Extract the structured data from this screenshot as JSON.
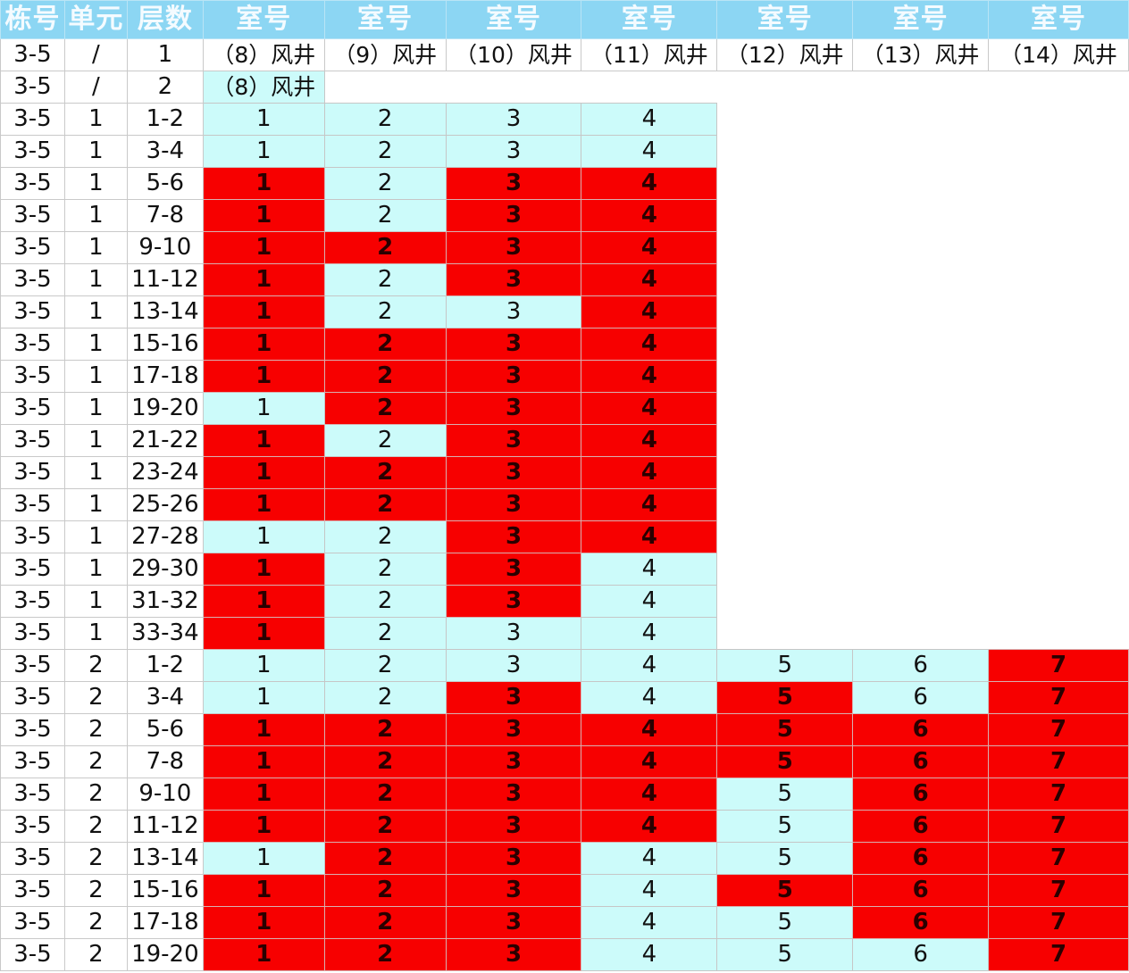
{
  "headers": [
    "栋号",
    "单元",
    "层数",
    "室号",
    "室号",
    "室号",
    "室号",
    "室号",
    "室号",
    "室号"
  ],
  "colors": {
    "header": "#8cd6f3",
    "cyan": "#ccfbfa",
    "red": "#f70000",
    "white": "#ffffff"
  },
  "rows": [
    {
      "cells": [
        {
          "v": "3-5",
          "s": "w"
        },
        {
          "v": "/",
          "s": "w"
        },
        {
          "v": "1",
          "s": "w"
        },
        {
          "v": "（8）风井",
          "s": "w",
          "k": "shaft"
        },
        {
          "v": "（9）风井",
          "s": "w",
          "k": "shaft"
        },
        {
          "v": "（10）风井",
          "s": "w",
          "k": "shaft"
        },
        {
          "v": "（11）风井",
          "s": "w",
          "k": "shaft"
        },
        {
          "v": "（12）风井",
          "s": "w",
          "k": "shaft"
        },
        {
          "v": "（13）风井",
          "s": "w",
          "k": "shaft"
        },
        {
          "v": "（14）风井",
          "s": "w",
          "k": "shaft"
        }
      ]
    },
    {
      "cells": [
        {
          "v": "3-5",
          "s": "w"
        },
        {
          "v": "/",
          "s": "w"
        },
        {
          "v": "2",
          "s": "w"
        },
        {
          "v": "（8）风井",
          "s": "c",
          "k": "shaft"
        },
        {
          "v": "",
          "s": "e"
        },
        {
          "v": "",
          "s": "e"
        },
        {
          "v": "",
          "s": "e"
        },
        {
          "v": "",
          "s": "e"
        },
        {
          "v": "",
          "s": "e"
        },
        {
          "v": "",
          "s": "e"
        }
      ]
    },
    {
      "cells": [
        {
          "v": "3-5",
          "s": "w"
        },
        {
          "v": "1",
          "s": "w"
        },
        {
          "v": "1-2",
          "s": "w"
        },
        {
          "v": "1",
          "s": "c"
        },
        {
          "v": "2",
          "s": "c"
        },
        {
          "v": "3",
          "s": "c"
        },
        {
          "v": "4",
          "s": "c"
        },
        {
          "v": "",
          "s": "e"
        },
        {
          "v": "",
          "s": "e"
        },
        {
          "v": "",
          "s": "e"
        }
      ]
    },
    {
      "cells": [
        {
          "v": "3-5",
          "s": "w"
        },
        {
          "v": "1",
          "s": "w"
        },
        {
          "v": "3-4",
          "s": "w"
        },
        {
          "v": "1",
          "s": "c"
        },
        {
          "v": "2",
          "s": "c"
        },
        {
          "v": "3",
          "s": "c"
        },
        {
          "v": "4",
          "s": "c"
        },
        {
          "v": "",
          "s": "e"
        },
        {
          "v": "",
          "s": "e"
        },
        {
          "v": "",
          "s": "e"
        }
      ]
    },
    {
      "cells": [
        {
          "v": "3-5",
          "s": "w"
        },
        {
          "v": "1",
          "s": "w"
        },
        {
          "v": "5-6",
          "s": "w"
        },
        {
          "v": "1",
          "s": "r"
        },
        {
          "v": "2",
          "s": "c"
        },
        {
          "v": "3",
          "s": "r"
        },
        {
          "v": "4",
          "s": "r"
        },
        {
          "v": "",
          "s": "e"
        },
        {
          "v": "",
          "s": "e"
        },
        {
          "v": "",
          "s": "e"
        }
      ]
    },
    {
      "cells": [
        {
          "v": "3-5",
          "s": "w"
        },
        {
          "v": "1",
          "s": "w"
        },
        {
          "v": "7-8",
          "s": "w"
        },
        {
          "v": "1",
          "s": "r"
        },
        {
          "v": "2",
          "s": "c"
        },
        {
          "v": "3",
          "s": "r"
        },
        {
          "v": "4",
          "s": "r"
        },
        {
          "v": "",
          "s": "e"
        },
        {
          "v": "",
          "s": "e"
        },
        {
          "v": "",
          "s": "e"
        }
      ]
    },
    {
      "cells": [
        {
          "v": "3-5",
          "s": "w"
        },
        {
          "v": "1",
          "s": "w"
        },
        {
          "v": "9-10",
          "s": "w"
        },
        {
          "v": "1",
          "s": "r"
        },
        {
          "v": "2",
          "s": "r"
        },
        {
          "v": "3",
          "s": "r"
        },
        {
          "v": "4",
          "s": "r"
        },
        {
          "v": "",
          "s": "e"
        },
        {
          "v": "",
          "s": "e"
        },
        {
          "v": "",
          "s": "e"
        }
      ]
    },
    {
      "cells": [
        {
          "v": "3-5",
          "s": "w"
        },
        {
          "v": "1",
          "s": "w"
        },
        {
          "v": "11-12",
          "s": "w"
        },
        {
          "v": "1",
          "s": "r"
        },
        {
          "v": "2",
          "s": "c"
        },
        {
          "v": "3",
          "s": "r"
        },
        {
          "v": "4",
          "s": "r"
        },
        {
          "v": "",
          "s": "e"
        },
        {
          "v": "",
          "s": "e"
        },
        {
          "v": "",
          "s": "e"
        }
      ]
    },
    {
      "cells": [
        {
          "v": "3-5",
          "s": "w"
        },
        {
          "v": "1",
          "s": "w"
        },
        {
          "v": "13-14",
          "s": "w"
        },
        {
          "v": "1",
          "s": "r"
        },
        {
          "v": "2",
          "s": "c"
        },
        {
          "v": "3",
          "s": "c"
        },
        {
          "v": "4",
          "s": "r"
        },
        {
          "v": "",
          "s": "e"
        },
        {
          "v": "",
          "s": "e"
        },
        {
          "v": "",
          "s": "e"
        }
      ]
    },
    {
      "cells": [
        {
          "v": "3-5",
          "s": "w"
        },
        {
          "v": "1",
          "s": "w"
        },
        {
          "v": "15-16",
          "s": "w"
        },
        {
          "v": "1",
          "s": "r"
        },
        {
          "v": "2",
          "s": "r"
        },
        {
          "v": "3",
          "s": "r"
        },
        {
          "v": "4",
          "s": "r"
        },
        {
          "v": "",
          "s": "e"
        },
        {
          "v": "",
          "s": "e"
        },
        {
          "v": "",
          "s": "e"
        }
      ]
    },
    {
      "cells": [
        {
          "v": "3-5",
          "s": "w"
        },
        {
          "v": "1",
          "s": "w"
        },
        {
          "v": "17-18",
          "s": "w"
        },
        {
          "v": "1",
          "s": "r"
        },
        {
          "v": "2",
          "s": "r"
        },
        {
          "v": "3",
          "s": "r"
        },
        {
          "v": "4",
          "s": "r"
        },
        {
          "v": "",
          "s": "e"
        },
        {
          "v": "",
          "s": "e"
        },
        {
          "v": "",
          "s": "e"
        }
      ]
    },
    {
      "cells": [
        {
          "v": "3-5",
          "s": "w"
        },
        {
          "v": "1",
          "s": "w"
        },
        {
          "v": "19-20",
          "s": "w"
        },
        {
          "v": "1",
          "s": "c"
        },
        {
          "v": "2",
          "s": "r"
        },
        {
          "v": "3",
          "s": "r"
        },
        {
          "v": "4",
          "s": "r"
        },
        {
          "v": "",
          "s": "e"
        },
        {
          "v": "",
          "s": "e"
        },
        {
          "v": "",
          "s": "e"
        }
      ]
    },
    {
      "cells": [
        {
          "v": "3-5",
          "s": "w"
        },
        {
          "v": "1",
          "s": "w"
        },
        {
          "v": "21-22",
          "s": "w"
        },
        {
          "v": "1",
          "s": "r"
        },
        {
          "v": "2",
          "s": "c"
        },
        {
          "v": "3",
          "s": "r"
        },
        {
          "v": "4",
          "s": "r"
        },
        {
          "v": "",
          "s": "e"
        },
        {
          "v": "",
          "s": "e"
        },
        {
          "v": "",
          "s": "e"
        }
      ]
    },
    {
      "cells": [
        {
          "v": "3-5",
          "s": "w"
        },
        {
          "v": "1",
          "s": "w"
        },
        {
          "v": "23-24",
          "s": "w"
        },
        {
          "v": "1",
          "s": "r"
        },
        {
          "v": "2",
          "s": "r"
        },
        {
          "v": "3",
          "s": "r"
        },
        {
          "v": "4",
          "s": "r"
        },
        {
          "v": "",
          "s": "e"
        },
        {
          "v": "",
          "s": "e"
        },
        {
          "v": "",
          "s": "e"
        }
      ]
    },
    {
      "cells": [
        {
          "v": "3-5",
          "s": "w"
        },
        {
          "v": "1",
          "s": "w"
        },
        {
          "v": "25-26",
          "s": "w"
        },
        {
          "v": "1",
          "s": "r"
        },
        {
          "v": "2",
          "s": "r"
        },
        {
          "v": "3",
          "s": "r"
        },
        {
          "v": "4",
          "s": "r"
        },
        {
          "v": "",
          "s": "e"
        },
        {
          "v": "",
          "s": "e"
        },
        {
          "v": "",
          "s": "e"
        }
      ]
    },
    {
      "cells": [
        {
          "v": "3-5",
          "s": "w"
        },
        {
          "v": "1",
          "s": "w"
        },
        {
          "v": "27-28",
          "s": "w"
        },
        {
          "v": "1",
          "s": "c"
        },
        {
          "v": "2",
          "s": "c"
        },
        {
          "v": "3",
          "s": "r"
        },
        {
          "v": "4",
          "s": "r"
        },
        {
          "v": "",
          "s": "e"
        },
        {
          "v": "",
          "s": "e"
        },
        {
          "v": "",
          "s": "e"
        }
      ]
    },
    {
      "cells": [
        {
          "v": "3-5",
          "s": "w"
        },
        {
          "v": "1",
          "s": "w"
        },
        {
          "v": "29-30",
          "s": "w"
        },
        {
          "v": "1",
          "s": "r"
        },
        {
          "v": "2",
          "s": "c"
        },
        {
          "v": "3",
          "s": "r"
        },
        {
          "v": "4",
          "s": "c"
        },
        {
          "v": "",
          "s": "e"
        },
        {
          "v": "",
          "s": "e"
        },
        {
          "v": "",
          "s": "e"
        }
      ]
    },
    {
      "cells": [
        {
          "v": "3-5",
          "s": "w"
        },
        {
          "v": "1",
          "s": "w"
        },
        {
          "v": "31-32",
          "s": "w"
        },
        {
          "v": "1",
          "s": "r"
        },
        {
          "v": "2",
          "s": "c"
        },
        {
          "v": "3",
          "s": "r"
        },
        {
          "v": "4",
          "s": "c"
        },
        {
          "v": "",
          "s": "e"
        },
        {
          "v": "",
          "s": "e"
        },
        {
          "v": "",
          "s": "e"
        }
      ]
    },
    {
      "cells": [
        {
          "v": "3-5",
          "s": "w"
        },
        {
          "v": "1",
          "s": "w"
        },
        {
          "v": "33-34",
          "s": "w"
        },
        {
          "v": "1",
          "s": "r"
        },
        {
          "v": "2",
          "s": "c"
        },
        {
          "v": "3",
          "s": "c"
        },
        {
          "v": "4",
          "s": "c"
        },
        {
          "v": "",
          "s": "e"
        },
        {
          "v": "",
          "s": "e"
        },
        {
          "v": "",
          "s": "e"
        }
      ]
    },
    {
      "cells": [
        {
          "v": "3-5",
          "s": "w"
        },
        {
          "v": "2",
          "s": "w"
        },
        {
          "v": "1-2",
          "s": "w"
        },
        {
          "v": "1",
          "s": "c"
        },
        {
          "v": "2",
          "s": "c"
        },
        {
          "v": "3",
          "s": "c"
        },
        {
          "v": "4",
          "s": "c"
        },
        {
          "v": "5",
          "s": "c"
        },
        {
          "v": "6",
          "s": "c"
        },
        {
          "v": "7",
          "s": "r"
        }
      ]
    },
    {
      "cells": [
        {
          "v": "3-5",
          "s": "w"
        },
        {
          "v": "2",
          "s": "w"
        },
        {
          "v": "3-4",
          "s": "w"
        },
        {
          "v": "1",
          "s": "c"
        },
        {
          "v": "2",
          "s": "c"
        },
        {
          "v": "3",
          "s": "r"
        },
        {
          "v": "4",
          "s": "c"
        },
        {
          "v": "5",
          "s": "r"
        },
        {
          "v": "6",
          "s": "c"
        },
        {
          "v": "7",
          "s": "r"
        }
      ]
    },
    {
      "cells": [
        {
          "v": "3-5",
          "s": "w"
        },
        {
          "v": "2",
          "s": "w"
        },
        {
          "v": "5-6",
          "s": "w"
        },
        {
          "v": "1",
          "s": "r"
        },
        {
          "v": "2",
          "s": "r"
        },
        {
          "v": "3",
          "s": "r"
        },
        {
          "v": "4",
          "s": "r"
        },
        {
          "v": "5",
          "s": "r"
        },
        {
          "v": "6",
          "s": "r"
        },
        {
          "v": "7",
          "s": "r"
        }
      ]
    },
    {
      "cells": [
        {
          "v": "3-5",
          "s": "w"
        },
        {
          "v": "2",
          "s": "w"
        },
        {
          "v": "7-8",
          "s": "w"
        },
        {
          "v": "1",
          "s": "r"
        },
        {
          "v": "2",
          "s": "r"
        },
        {
          "v": "3",
          "s": "r"
        },
        {
          "v": "4",
          "s": "r"
        },
        {
          "v": "5",
          "s": "r"
        },
        {
          "v": "6",
          "s": "r"
        },
        {
          "v": "7",
          "s": "r"
        }
      ]
    },
    {
      "cells": [
        {
          "v": "3-5",
          "s": "w"
        },
        {
          "v": "2",
          "s": "w"
        },
        {
          "v": "9-10",
          "s": "w"
        },
        {
          "v": "1",
          "s": "r"
        },
        {
          "v": "2",
          "s": "r"
        },
        {
          "v": "3",
          "s": "r"
        },
        {
          "v": "4",
          "s": "r"
        },
        {
          "v": "5",
          "s": "c"
        },
        {
          "v": "6",
          "s": "r"
        },
        {
          "v": "7",
          "s": "r"
        }
      ]
    },
    {
      "cells": [
        {
          "v": "3-5",
          "s": "w"
        },
        {
          "v": "2",
          "s": "w"
        },
        {
          "v": "11-12",
          "s": "w"
        },
        {
          "v": "1",
          "s": "r"
        },
        {
          "v": "2",
          "s": "r"
        },
        {
          "v": "3",
          "s": "r"
        },
        {
          "v": "4",
          "s": "r"
        },
        {
          "v": "5",
          "s": "c"
        },
        {
          "v": "6",
          "s": "r"
        },
        {
          "v": "7",
          "s": "r"
        }
      ]
    },
    {
      "cells": [
        {
          "v": "3-5",
          "s": "w"
        },
        {
          "v": "2",
          "s": "w"
        },
        {
          "v": "13-14",
          "s": "w"
        },
        {
          "v": "1",
          "s": "c"
        },
        {
          "v": "2",
          "s": "r"
        },
        {
          "v": "3",
          "s": "r"
        },
        {
          "v": "4",
          "s": "c"
        },
        {
          "v": "5",
          "s": "c"
        },
        {
          "v": "6",
          "s": "r"
        },
        {
          "v": "7",
          "s": "r"
        }
      ]
    },
    {
      "cells": [
        {
          "v": "3-5",
          "s": "w"
        },
        {
          "v": "2",
          "s": "w"
        },
        {
          "v": "15-16",
          "s": "w"
        },
        {
          "v": "1",
          "s": "r"
        },
        {
          "v": "2",
          "s": "r"
        },
        {
          "v": "3",
          "s": "r"
        },
        {
          "v": "4",
          "s": "c"
        },
        {
          "v": "5",
          "s": "r"
        },
        {
          "v": "6",
          "s": "r"
        },
        {
          "v": "7",
          "s": "r"
        }
      ]
    },
    {
      "cells": [
        {
          "v": "3-5",
          "s": "w"
        },
        {
          "v": "2",
          "s": "w"
        },
        {
          "v": "17-18",
          "s": "w"
        },
        {
          "v": "1",
          "s": "r"
        },
        {
          "v": "2",
          "s": "r"
        },
        {
          "v": "3",
          "s": "r"
        },
        {
          "v": "4",
          "s": "c"
        },
        {
          "v": "5",
          "s": "c"
        },
        {
          "v": "6",
          "s": "r"
        },
        {
          "v": "7",
          "s": "r"
        }
      ]
    },
    {
      "cells": [
        {
          "v": "3-5",
          "s": "w"
        },
        {
          "v": "2",
          "s": "w"
        },
        {
          "v": "19-20",
          "s": "w"
        },
        {
          "v": "1",
          "s": "r"
        },
        {
          "v": "2",
          "s": "r"
        },
        {
          "v": "3",
          "s": "r"
        },
        {
          "v": "4",
          "s": "c"
        },
        {
          "v": "5",
          "s": "c"
        },
        {
          "v": "6",
          "s": "c"
        },
        {
          "v": "7",
          "s": "r"
        }
      ]
    }
  ]
}
